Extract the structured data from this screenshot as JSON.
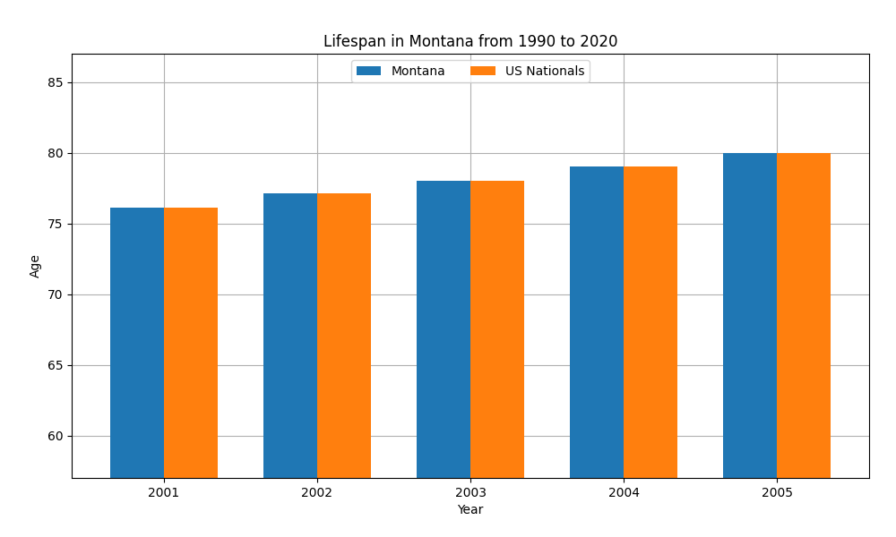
{
  "chart_data": {
    "type": "bar",
    "title": "Lifespan in Montana from 1990 to 2020",
    "x_label": "Year",
    "y_label": "Age",
    "categories": [
      "2001",
      "2002",
      "2003",
      "2004",
      "2005"
    ],
    "series": [
      {
        "name": "Montana",
        "values": [
          76.1,
          77.1,
          78.0,
          79.0,
          80.0
        ]
      },
      {
        "name": "US Nationals",
        "values": [
          76.1,
          77.1,
          78.0,
          79.0,
          80.0
        ]
      }
    ],
    "ylim": [
      57,
      87
    ],
    "yticks": [
      60,
      65,
      70,
      75,
      80,
      85
    ],
    "grid": true,
    "legend": "upper center"
  }
}
